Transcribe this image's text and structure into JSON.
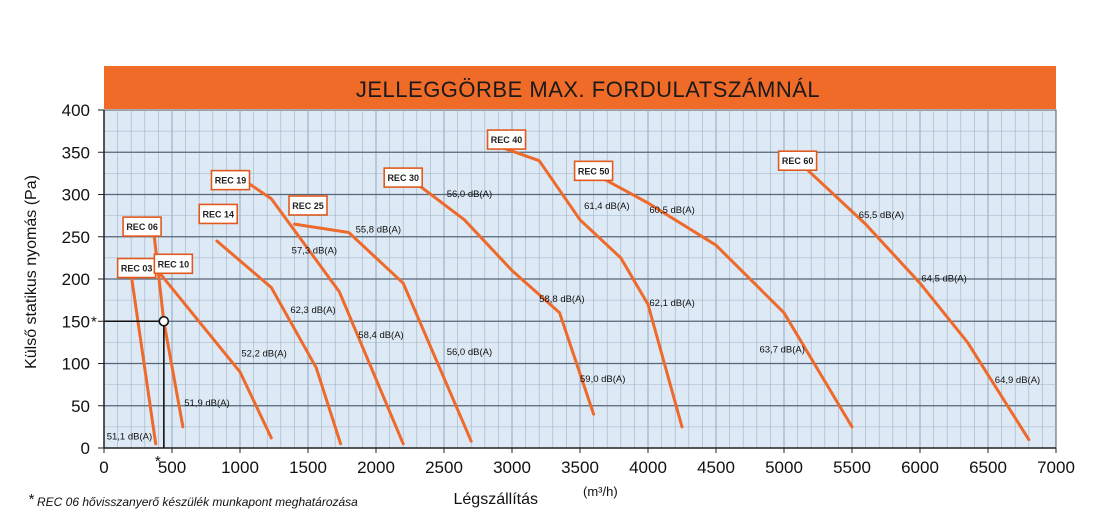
{
  "chart_data": {
    "type": "line",
    "title": "JELLEGGÖRBE MAX. FORDULATSZÁMNÁL",
    "xlabel": "Légszállítás",
    "xunit": "(m³/h)",
    "ylabel": "Külső statikus nyomás (Pa)",
    "xlim": [
      0,
      7000
    ],
    "ylim": [
      0,
      400
    ],
    "xticks": [
      "0",
      "500",
      "1000",
      "1500",
      "2000",
      "2500",
      "3000",
      "3500",
      "4000",
      "4500",
      "5000",
      "5500",
      "6000",
      "6500",
      "7000"
    ],
    "yticks": [
      "0",
      "50",
      "100",
      "150",
      "200",
      "250",
      "300",
      "350",
      "400"
    ],
    "grid": true,
    "colors": {
      "curve": "#ee6a2c",
      "title_bar": "#f06a28",
      "plot_bg": "#dde9f5",
      "grid": "#9fb2c4",
      "tag_border": "#e05a20"
    },
    "series": [
      {
        "name": "REC 03",
        "points": [
          [
            200,
            205
          ],
          [
            380,
            5
          ]
        ],
        "tag_at": [
          240,
          213
        ]
      },
      {
        "name": "REC 06",
        "points": [
          [
            370,
            250
          ],
          [
            440,
            150
          ],
          [
            580,
            25
          ]
        ],
        "tag_at": [
          280,
          262
        ]
      },
      {
        "name": "REC 10",
        "points": [
          [
            420,
            205
          ],
          [
            1000,
            90
          ],
          [
            1230,
            12
          ]
        ],
        "tag_at": [
          510,
          218
        ]
      },
      {
        "name": "REC 14",
        "points": [
          [
            830,
            245
          ],
          [
            1230,
            190
          ],
          [
            1560,
            95
          ],
          [
            1740,
            5
          ]
        ],
        "tag_at": [
          840,
          277
        ]
      },
      {
        "name": "REC 19",
        "points": [
          [
            1000,
            320
          ],
          [
            1230,
            295
          ],
          [
            1730,
            185
          ],
          [
            2200,
            5
          ]
        ],
        "tag_at": [
          930,
          317
        ]
      },
      {
        "name": "REC 25",
        "points": [
          [
            1400,
            265
          ],
          [
            1800,
            255
          ],
          [
            2200,
            195
          ],
          [
            2700,
            8
          ]
        ],
        "tag_at": [
          1500,
          287
        ]
      },
      {
        "name": "REC 30",
        "points": [
          [
            2200,
            325
          ],
          [
            2650,
            270
          ],
          [
            3000,
            210
          ],
          [
            3350,
            160
          ],
          [
            3600,
            40
          ]
        ],
        "tag_at": [
          2200,
          320
        ]
      },
      {
        "name": "REC 40",
        "points": [
          [
            2850,
            360
          ],
          [
            3200,
            340
          ],
          [
            3500,
            270
          ],
          [
            3800,
            225
          ],
          [
            4000,
            170
          ],
          [
            4250,
            25
          ]
        ],
        "tag_at": [
          2960,
          365
        ]
      },
      {
        "name": "REC 50",
        "points": [
          [
            3600,
            325
          ],
          [
            4000,
            290
          ],
          [
            4500,
            240
          ],
          [
            5000,
            160
          ],
          [
            5500,
            25
          ]
        ],
        "tag_at": [
          3600,
          328
        ]
      },
      {
        "name": "REC 60",
        "points": [
          [
            5100,
            340
          ],
          [
            5600,
            265
          ],
          [
            6000,
            195
          ],
          [
            6350,
            125
          ],
          [
            6800,
            10
          ]
        ],
        "tag_at": [
          5100,
          340
        ]
      }
    ],
    "annotations": [
      {
        "text": "51,1 dB(A)",
        "at": [
          20,
          10
        ]
      },
      {
        "text": "51,9 dB(A)",
        "at": [
          590,
          50
        ]
      },
      {
        "text": "52,2 dB(A)",
        "at": [
          1010,
          108
        ]
      },
      {
        "text": "62,3 dB(A)",
        "at": [
          1370,
          160
        ]
      },
      {
        "text": "58,4 dB(A)",
        "at": [
          1870,
          130
        ]
      },
      {
        "text": "57,3 dB(A)",
        "at": [
          1380,
          230
        ]
      },
      {
        "text": "55,8 dB(A)",
        "at": [
          1850,
          255
        ]
      },
      {
        "text": "56,0 dB(A)",
        "at": [
          2520,
          110
        ]
      },
      {
        "text": "56,0 dB(A)",
        "at": [
          2520,
          297
        ]
      },
      {
        "text": "58,8 dB(A)",
        "at": [
          3200,
          173
        ]
      },
      {
        "text": "59,0 dB(A)",
        "at": [
          3500,
          78
        ]
      },
      {
        "text": "61,4 dB(A)",
        "at": [
          3530,
          283
        ]
      },
      {
        "text": "60,5 dB(A)",
        "at": [
          4010,
          278
        ]
      },
      {
        "text": "62,1 dB(A)",
        "at": [
          4010,
          168
        ]
      },
      {
        "text": "63,7 dB(A)",
        "at": [
          4820,
          113
        ]
      },
      {
        "text": "65,5 dB(A)",
        "at": [
          5550,
          272
        ]
      },
      {
        "text": "64,5 dB(A)",
        "at": [
          6010,
          197
        ]
      },
      {
        "text": "64,9 dB(A)",
        "at": [
          6550,
          77
        ]
      }
    ],
    "operating_point": {
      "x": 440,
      "y": 150,
      "marker": "*"
    },
    "footnote": "REC 06 hővisszanyerő készülék munkapont meghatározása",
    "footnote_mark": "*"
  }
}
